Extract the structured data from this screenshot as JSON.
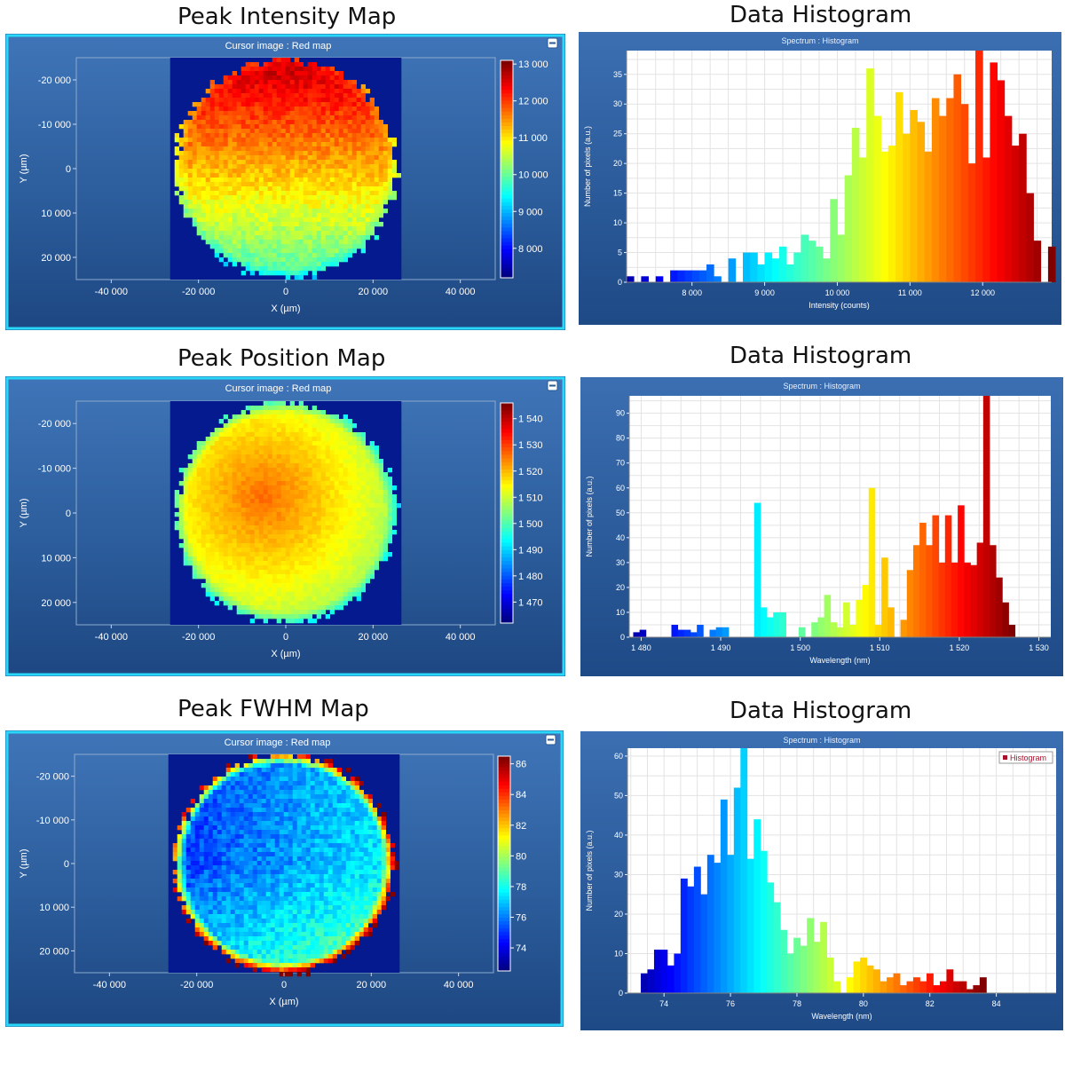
{
  "titles": {
    "intensity_map": "Peak Intensity Map",
    "intensity_hist": "Data Histogram",
    "position_map": "Peak Position Map",
    "position_hist": "Data Histogram",
    "fwhm_map": "Peak FWHM Map",
    "fwhm_hist": "Data Histogram"
  },
  "chart_data": [
    {
      "type": "heatmap",
      "id": "intensity-map",
      "title": "Cursor image : Red map",
      "xlabel": "X (µm)",
      "ylabel": "Y (µm)",
      "xlim": [
        -48000,
        48000
      ],
      "ylim": [
        -25000,
        25000
      ],
      "x_ticks": [
        -40000,
        -20000,
        0,
        20000,
        40000
      ],
      "x_tick_labels": [
        "-40 000",
        "-20 000",
        "0",
        "20 000",
        "40 000"
      ],
      "y_ticks": [
        -20000,
        -10000,
        0,
        10000,
        20000
      ],
      "y_tick_labels": [
        "-20 000",
        "-10 000",
        "0",
        "10 000",
        "20 000"
      ],
      "colorbar_range": [
        7200,
        13100
      ],
      "colorbar_ticks": [
        8000,
        9000,
        10000,
        11000,
        12000,
        13000
      ],
      "colorbar_labels": [
        "8 000",
        "9 000",
        "10 000",
        "11 000",
        "12 000",
        "13 000"
      ],
      "colormap": "jet",
      "pattern": "top-high",
      "top_value": 12800,
      "bottom_value": 9800
    },
    {
      "type": "bar",
      "id": "intensity-hist",
      "title": "Spectrum : Histogram",
      "xlabel": "Intensity (counts)",
      "ylabel": "Number of pixels (a.u.)",
      "xlim": [
        7100,
        12950
      ],
      "ylim": [
        0,
        39
      ],
      "x_ticks": [
        8000,
        9000,
        10000,
        11000,
        12000
      ],
      "x_tick_labels": [
        "8 000",
        "9 000",
        "10 000",
        "11 000",
        "12 000"
      ],
      "y_ticks": [
        0,
        5,
        10,
        15,
        20,
        25,
        30,
        35
      ],
      "bin_start": 7100,
      "bin_width": 100,
      "values": [
        1,
        0,
        1,
        0,
        1,
        0,
        2,
        2,
        2,
        2,
        2,
        3,
        1,
        0,
        4,
        0,
        5,
        5,
        3,
        5,
        4,
        6,
        3,
        5,
        8,
        7,
        6,
        4,
        14,
        8,
        18,
        26,
        21,
        36,
        28,
        22,
        23,
        32,
        25,
        29,
        27,
        22,
        31,
        28,
        31,
        35,
        30,
        20,
        39,
        21,
        37,
        34,
        28,
        23,
        25,
        15,
        7,
        0,
        6
      ]
    },
    {
      "type": "heatmap",
      "id": "position-map",
      "title": "Cursor image : Red map",
      "xlabel": "X (µm)",
      "ylabel": "Y (µm)",
      "xlim": [
        -48000,
        48000
      ],
      "ylim": [
        -25000,
        25000
      ],
      "x_ticks": [
        -40000,
        -20000,
        0,
        20000,
        40000
      ],
      "x_tick_labels": [
        "-40 000",
        "-20 000",
        "0",
        "20 000",
        "40 000"
      ],
      "y_ticks": [
        -20000,
        -10000,
        0,
        10000,
        20000
      ],
      "y_tick_labels": [
        "-20 000",
        "-10 000",
        "0",
        "10 000",
        "20 000"
      ],
      "colorbar_range": [
        1462,
        1546
      ],
      "colorbar_ticks": [
        1470,
        1480,
        1490,
        1500,
        1510,
        1520,
        1530,
        1540
      ],
      "colorbar_labels": [
        "1 470",
        "1 480",
        "1 490",
        "1 500",
        "1 510",
        "1 520",
        "1 530",
        "1 540"
      ],
      "colormap": "jet",
      "pattern": "center-high",
      "top_value": 1527,
      "bottom_value": 1505
    },
    {
      "type": "bar",
      "id": "position-hist",
      "title": "Spectrum : Histogram",
      "xlabel": "Wavelength (nm)",
      "ylabel": "Number of pixels (a.u.)",
      "xlim": [
        1478.5,
        1531.5
      ],
      "ylim": [
        0,
        97
      ],
      "x_ticks": [
        1480,
        1490,
        1500,
        1510,
        1520,
        1530
      ],
      "x_tick_labels": [
        "1 480",
        "1 490",
        "1 500",
        "1 510",
        "1 520",
        "1 530"
      ],
      "y_ticks": [
        0,
        10,
        20,
        30,
        40,
        50,
        60,
        70,
        80,
        90
      ],
      "bin_start": 1479,
      "bin_width": 0.8,
      "values": [
        2,
        3,
        0,
        0,
        0,
        0,
        5,
        3,
        3,
        2,
        5,
        0,
        3,
        4,
        4,
        0,
        0,
        0,
        0,
        54,
        12,
        8,
        10,
        10,
        0,
        0,
        4,
        0,
        6,
        8,
        17,
        6,
        4,
        14,
        5,
        15,
        21,
        60,
        5,
        32,
        12,
        0,
        7,
        27,
        37,
        46,
        37,
        49,
        30,
        49,
        30,
        53,
        30,
        29,
        38,
        97,
        37,
        24,
        14,
        5
      ]
    },
    {
      "type": "heatmap",
      "id": "fwhm-map",
      "title": "Cursor image : Red map",
      "xlabel": "X (µm)",
      "ylabel": "Y (µm)",
      "xlim": [
        -48000,
        48000
      ],
      "ylim": [
        -25000,
        25000
      ],
      "x_ticks": [
        -40000,
        -20000,
        0,
        20000,
        40000
      ],
      "x_tick_labels": [
        "-40 000",
        "-20 000",
        "0",
        "20 000",
        "40 000"
      ],
      "y_ticks": [
        -20000,
        -10000,
        0,
        10000,
        20000
      ],
      "y_tick_labels": [
        "-20 000",
        "-10 000",
        "0",
        "10 000",
        "20 000"
      ],
      "colorbar_range": [
        72.5,
        86.5
      ],
      "colorbar_ticks": [
        74,
        76,
        78,
        80,
        82,
        84,
        86
      ],
      "colorbar_labels": [
        "74",
        "76",
        "78",
        "80",
        "82",
        "84",
        "86"
      ],
      "colormap": "jet",
      "pattern": "left-low",
      "top_value": 77,
      "bottom_value": 76
    },
    {
      "type": "bar",
      "id": "fwhm-hist",
      "title": "Spectrum : Histogram",
      "xlabel": "Wavelength (nm)",
      "ylabel": "Number of pixels (a.u.)",
      "legend": "Histogram",
      "legend_position": "top-right",
      "xlim": [
        72.9,
        85.8
      ],
      "ylim": [
        0,
        62
      ],
      "x_ticks": [
        74,
        76,
        78,
        80,
        82,
        84
      ],
      "x_tick_labels": [
        "74",
        "76",
        "78",
        "80",
        "82",
        "84"
      ],
      "y_ticks": [
        0,
        10,
        20,
        30,
        40,
        50,
        60
      ],
      "bin_start": 73.3,
      "bin_width": 0.2,
      "values": [
        5,
        6,
        11,
        11,
        7,
        10,
        29,
        27,
        32,
        25,
        35,
        33,
        49,
        35,
        52,
        62,
        34,
        44,
        36,
        28,
        23,
        16,
        10,
        14,
        12,
        19,
        13,
        18,
        9,
        3,
        0,
        4,
        8,
        9,
        7,
        6,
        3,
        4,
        5,
        2,
        3,
        4,
        3,
        5,
        2,
        3,
        6,
        3,
        3,
        1,
        2,
        4
      ]
    }
  ]
}
